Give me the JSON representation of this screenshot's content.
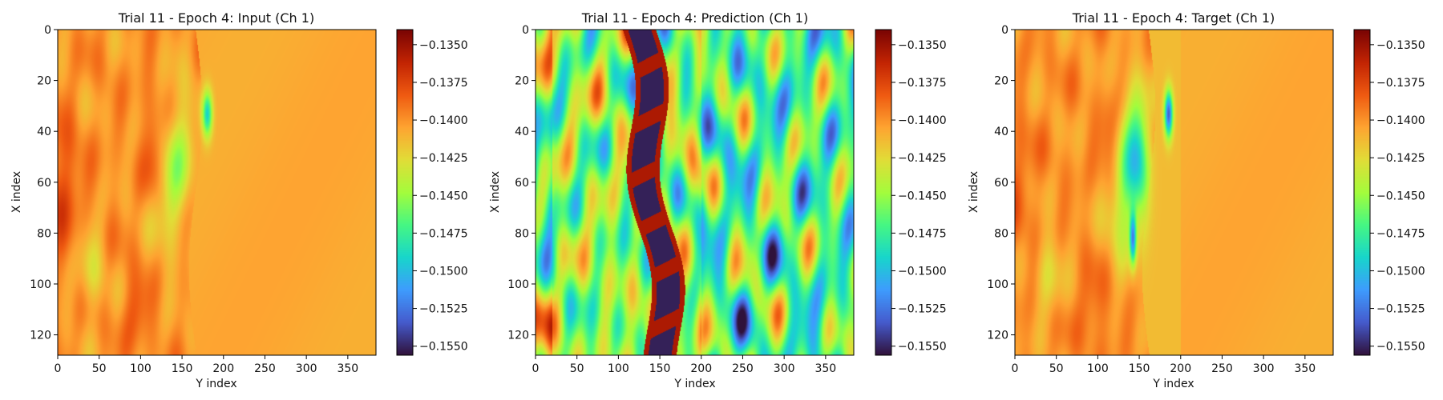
{
  "chart_data": [
    {
      "type": "heatmap",
      "title": "Trial 11 - Epoch 4: Input (Ch 1)",
      "xlabel": "Y index",
      "ylabel": "X index",
      "xlim": [
        0,
        384
      ],
      "ylim": [
        128,
        0
      ],
      "xticks": [
        0,
        50,
        100,
        150,
        200,
        250,
        300,
        350
      ],
      "yticks": [
        0,
        20,
        40,
        60,
        80,
        100,
        120
      ],
      "colorbar": {
        "range": [
          -0.1556,
          -0.134
        ],
        "ticks": [
          "−0.1350",
          "−0.1375",
          "−0.1400",
          "−0.1425",
          "−0.1450",
          "−0.1475",
          "−0.1500",
          "−0.1525",
          "−0.1550"
        ],
        "tick_values": [
          -0.135,
          -0.1375,
          -0.14,
          -0.1425,
          -0.145,
          -0.1475,
          -0.15,
          -0.1525,
          -0.155
        ],
        "colormap": "turbo"
      },
      "pattern": "input"
    },
    {
      "type": "heatmap",
      "title": "Trial 11 - Epoch 4: Prediction (Ch 1)",
      "xlabel": "Y index",
      "ylabel": "X index",
      "xlim": [
        0,
        384
      ],
      "ylim": [
        128,
        0
      ],
      "xticks": [
        0,
        50,
        100,
        150,
        200,
        250,
        300,
        350
      ],
      "yticks": [
        0,
        20,
        40,
        60,
        80,
        100,
        120
      ],
      "colorbar": {
        "range": [
          -0.1556,
          -0.134
        ],
        "ticks": [
          "−0.1350",
          "−0.1375",
          "−0.1400",
          "−0.1425",
          "−0.1450",
          "−0.1475",
          "−0.1500",
          "−0.1525",
          "−0.1550"
        ],
        "tick_values": [
          -0.135,
          -0.1375,
          -0.14,
          -0.1425,
          -0.145,
          -0.1475,
          -0.15,
          -0.1525,
          -0.155
        ],
        "colormap": "turbo"
      },
      "pattern": "prediction"
    },
    {
      "type": "heatmap",
      "title": "Trial 11 - Epoch 4: Target (Ch 1)",
      "xlabel": "Y index",
      "ylabel": "X index",
      "xlim": [
        0,
        384
      ],
      "ylim": [
        128,
        0
      ],
      "xticks": [
        0,
        50,
        100,
        150,
        200,
        250,
        300,
        350
      ],
      "yticks": [
        0,
        20,
        40,
        60,
        80,
        100,
        120
      ],
      "colorbar": {
        "range": [
          -0.1556,
          -0.134
        ],
        "ticks": [
          "−0.1350",
          "−0.1375",
          "−0.1400",
          "−0.1425",
          "−0.1450",
          "−0.1475",
          "−0.1500",
          "−0.1525",
          "−0.1550"
        ],
        "tick_values": [
          -0.135,
          -0.1375,
          -0.14,
          -0.1425,
          -0.145,
          -0.1475,
          -0.15,
          -0.1525,
          -0.155
        ],
        "colormap": "turbo"
      },
      "pattern": "target"
    }
  ]
}
